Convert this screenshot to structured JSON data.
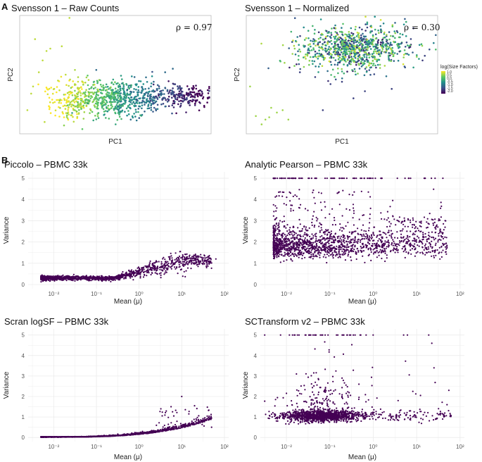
{
  "panel_letters": [
    "A",
    "B"
  ],
  "legend": {
    "title": "log(Size Factors)",
    "ticks": [
      "1.0",
      "0.5",
      "0.0",
      "-0.5",
      "-1.0",
      "-1.5",
      "-2.0"
    ],
    "colors": [
      "#fde725",
      "#5ec962",
      "#21918c",
      "#3b528b",
      "#440154"
    ]
  },
  "point_color": "#440154",
  "chart_data": [
    {
      "id": "raw",
      "type": "scatter",
      "title": "Svensson 1 – Raw Counts",
      "xlabel": "PC1",
      "ylabel": "PC2",
      "annotation": "ρ = 0.97",
      "xlim": [
        0,
        100
      ],
      "ylim": [
        0,
        100
      ],
      "clusters": [
        {
          "cx": 50,
          "cy": 30,
          "sx": 14,
          "sy": 8,
          "n": 650,
          "color_from": 0.25,
          "color_to": 0.75
        },
        {
          "cx": 85,
          "cy": 32,
          "sx": 8,
          "sy": 5,
          "n": 200,
          "color_from": 0.05,
          "color_to": 0.3
        },
        {
          "cx": 28,
          "cy": 28,
          "sx": 6,
          "sy": 9,
          "n": 120,
          "color_from": 0.7,
          "color_to": 0.95
        }
      ],
      "outliers": [
        [
          8,
          80
        ],
        [
          14,
          70
        ],
        [
          12,
          62
        ],
        [
          16,
          72
        ],
        [
          22,
          74
        ],
        [
          26,
          98
        ],
        [
          4,
          20
        ],
        [
          6,
          34
        ],
        [
          10,
          52
        ],
        [
          18,
          38
        ],
        [
          13,
          10
        ],
        [
          7,
          40
        ],
        [
          20,
          45
        ],
        [
          24,
          50
        ],
        [
          76,
          52
        ],
        [
          80,
          55
        ],
        [
          60,
          48
        ],
        [
          70,
          44
        ],
        [
          40,
          54
        ],
        [
          58,
          12
        ]
      ]
    },
    {
      "id": "norm",
      "type": "scatter",
      "title": "Svensson 1 – Normalized",
      "xlabel": "PC1",
      "ylabel": "PC2",
      "annotation": "ρ = 0.30",
      "xlim": [
        0,
        100
      ],
      "ylim": [
        0,
        100
      ],
      "clusters": [
        {
          "cx": 56,
          "cy": 72,
          "sx": 15,
          "sy": 9,
          "n": 900,
          "color_from": 0.1,
          "color_to": 0.95
        }
      ],
      "outliers": [
        [
          5,
          15
        ],
        [
          8,
          8
        ],
        [
          12,
          14
        ],
        [
          16,
          18
        ],
        [
          19,
          20
        ],
        [
          22,
          12
        ],
        [
          10,
          12
        ],
        [
          13,
          22
        ],
        [
          40,
          20
        ],
        [
          44,
          42
        ],
        [
          50,
          44
        ],
        [
          56,
          30
        ],
        [
          62,
          36
        ],
        [
          76,
          38
        ],
        [
          2,
          40
        ],
        [
          28,
          52
        ],
        [
          36,
          48
        ],
        [
          20,
          60
        ]
      ]
    },
    {
      "id": "piccolo",
      "type": "scatter",
      "title": "Piccolo – PBMC 33k",
      "xlabel": "Mean (μ)",
      "ylabel": "Variance",
      "xscale": "log10",
      "xlim": [
        -2.6,
        2.1
      ],
      "ylim": [
        -0.2,
        5.3
      ],
      "yticks": [
        "0",
        "1",
        "2",
        "3",
        "4",
        "5"
      ],
      "xticks": [
        "10⁻²",
        "10⁻¹",
        "10⁰",
        "10¹",
        "10²"
      ],
      "xtick_values": [
        -2,
        -1,
        0,
        1,
        2
      ],
      "ytick_values": [
        0,
        1,
        2,
        3,
        4,
        5
      ],
      "model": "piccolo",
      "n": 1500
    },
    {
      "id": "pearson",
      "type": "scatter",
      "title": "Analytic Pearson – PBMC 33k",
      "xlabel": "Mean (μ)",
      "ylabel": "Variance",
      "xscale": "log10",
      "xlim": [
        -2.6,
        2.1
      ],
      "ylim": [
        -0.2,
        5.3
      ],
      "yticks": [
        "0",
        "1",
        "2",
        "3",
        "4",
        "5"
      ],
      "xticks": [
        "10⁻²",
        "10⁻¹",
        "10⁰",
        "10¹",
        "10²"
      ],
      "xtick_values": [
        -2,
        -1,
        0,
        1,
        2
      ],
      "ytick_values": [
        0,
        1,
        2,
        3,
        4,
        5
      ],
      "model": "pearson",
      "n": 1700
    },
    {
      "id": "scran",
      "type": "scatter",
      "title": "Scran logSF – PBMC 33k",
      "xlabel": "Mean (μ)",
      "ylabel": "Variance",
      "xscale": "log10",
      "xlim": [
        -2.6,
        2.1
      ],
      "ylim": [
        -0.2,
        5.3
      ],
      "yticks": [
        "0",
        "1",
        "2",
        "3",
        "4",
        "5"
      ],
      "xticks": [
        "10⁻²",
        "10⁻¹",
        "10⁰",
        "10¹",
        "10²"
      ],
      "xtick_values": [
        -2,
        -1,
        0,
        1,
        2
      ],
      "ytick_values": [
        0,
        1,
        2,
        3,
        4,
        5
      ],
      "model": "scran",
      "n": 1300
    },
    {
      "id": "sct",
      "type": "scatter",
      "title": "SCTransform v2 – PBMC 33k",
      "xlabel": "Mean (μ)",
      "ylabel": "Variance",
      "xscale": "log10",
      "xlim": [
        -2.6,
        2.1
      ],
      "ylim": [
        -0.2,
        5.3
      ],
      "yticks": [
        "0",
        "1",
        "2",
        "3",
        "4",
        "5"
      ],
      "xticks": [
        "10⁻²",
        "10⁻¹",
        "10⁰",
        "10¹",
        "10²"
      ],
      "xtick_values": [
        -2,
        -1,
        0,
        1,
        2
      ],
      "ytick_values": [
        0,
        1,
        2,
        3,
        4,
        5
      ],
      "model": "sct",
      "n": 1600
    }
  ]
}
